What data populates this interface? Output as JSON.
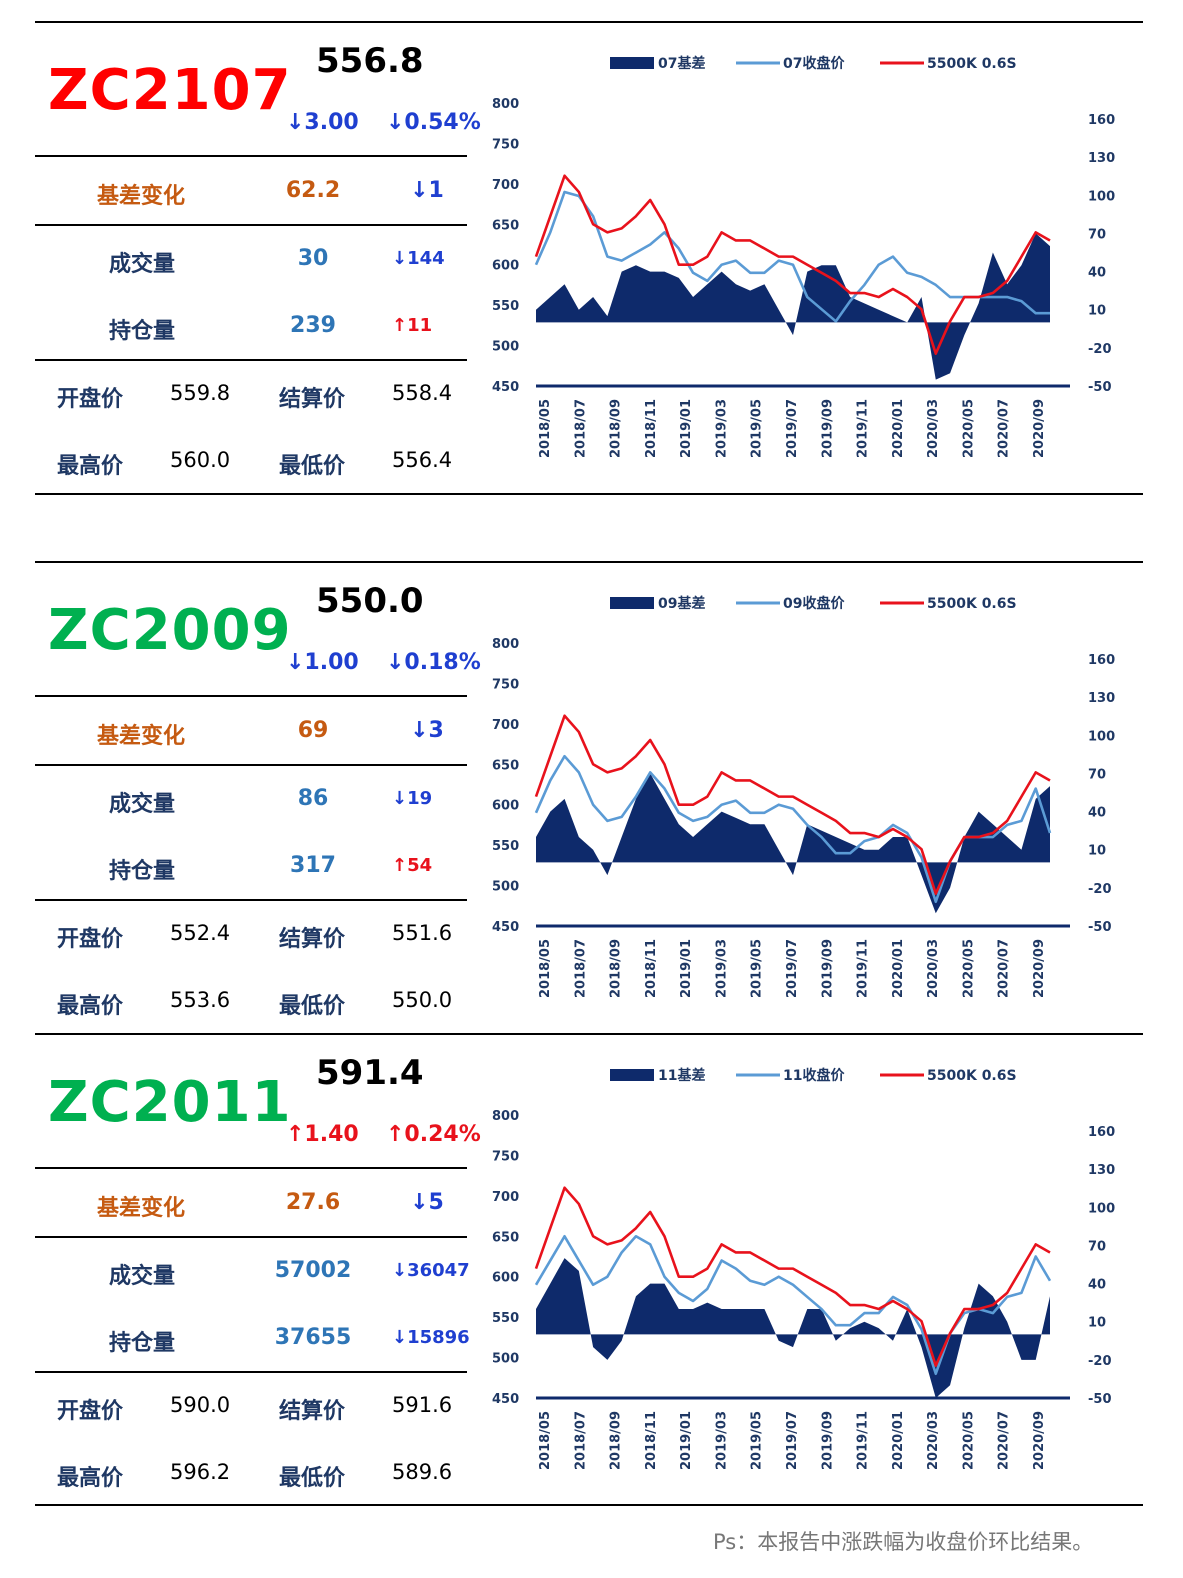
{
  "colors": {
    "red": "#FF0000",
    "green": "#00B050",
    "blue": "#1F3FD0",
    "orange": "#C55A11",
    "teal": "#2E75B6",
    "navy": "#0E2A6B",
    "lightblue": "#5B9BD5",
    "redline": "#E8121C"
  },
  "panels": [
    {
      "code": "ZC2107",
      "code_color": "#FF0000",
      "price": "556.8",
      "chg": "↓3.00",
      "pct": "↓0.54%",
      "chg_color": "#1F3FD0",
      "basis_label": "基差变化",
      "basis": "62.2",
      "basis_chg": "↓1",
      "basis_chg_color": "#1F3FD0",
      "vol_label": "成交量",
      "vol": "30",
      "vol_chg": "↓144",
      "vol_chg_color": "#1F3FD0",
      "oi_label": "持仓量",
      "oi": "239",
      "oi_chg": "↑11",
      "oi_chg_color": "#E8121C",
      "open_label": "开盘价",
      "open": "559.8",
      "settle_label": "结算价",
      "settle": "558.4",
      "high_label": "最高价",
      "high": "560.0",
      "low_label": "最低价",
      "low": "556.4",
      "legend": [
        "07基差",
        "07收盘价",
        "5500K 0.6S"
      ]
    },
    {
      "code": "ZC2009",
      "code_color": "#00B050",
      "price": "550.0",
      "chg": "↓1.00",
      "pct": "↓0.18%",
      "chg_color": "#1F3FD0",
      "basis_label": "基差变化",
      "basis": "69",
      "basis_chg": "↓3",
      "basis_chg_color": "#1F3FD0",
      "vol_label": "成交量",
      "vol": "86",
      "vol_chg": "↓19",
      "vol_chg_color": "#1F3FD0",
      "oi_label": "持仓量",
      "oi": "317",
      "oi_chg": "↑54",
      "oi_chg_color": "#E8121C",
      "open_label": "开盘价",
      "open": "552.4",
      "settle_label": "结算价",
      "settle": "551.6",
      "high_label": "最高价",
      "high": "553.6",
      "low_label": "最低价",
      "low": "550.0",
      "legend": [
        "09基差",
        "09收盘价",
        "5500K 0.6S"
      ]
    },
    {
      "code": "ZC2011",
      "code_color": "#00B050",
      "price": "591.4",
      "chg": "↑1.40",
      "pct": "↑0.24%",
      "chg_color": "#E8121C",
      "basis_label": "基差变化",
      "basis": "27.6",
      "basis_chg": "↓5",
      "basis_chg_color": "#1F3FD0",
      "vol_label": "成交量",
      "vol": "57002",
      "vol_chg": "↓36047",
      "vol_chg_color": "#1F3FD0",
      "oi_label": "持仓量",
      "oi": "37655",
      "oi_chg": "↓15896",
      "oi_chg_color": "#1F3FD0",
      "open_label": "开盘价",
      "open": "590.0",
      "settle_label": "结算价",
      "settle": "591.6",
      "high_label": "最高价",
      "high": "596.2",
      "low_label": "最低价",
      "low": "589.6",
      "legend": [
        "11基差",
        "11收盘价",
        "5500K 0.6S"
      ]
    }
  ],
  "chart_data": [
    {
      "type": "line",
      "x_ticks": [
        "2018/05",
        "2018/07",
        "2018/09",
        "2018/11",
        "2019/01",
        "2019/03",
        "2019/05",
        "2019/07",
        "2019/09",
        "2019/11",
        "2020/01",
        "2020/03",
        "2020/05",
        "2020/07",
        "2020/09"
      ],
      "y_left": [
        450,
        500,
        550,
        600,
        650,
        700,
        750,
        800
      ],
      "y_right": [
        -50,
        -20,
        10,
        40,
        70,
        100,
        130,
        160
      ],
      "ylim": [
        450,
        800
      ],
      "ylim_right": [
        -50,
        160
      ],
      "series": [
        {
          "name": "07收盘价",
          "axis": "left",
          "values": [
            600,
            640,
            690,
            685,
            660,
            610,
            605,
            615,
            625,
            640,
            620,
            590,
            580,
            600,
            605,
            590,
            590,
            605,
            600,
            560,
            545,
            530,
            555,
            575,
            600,
            610,
            590,
            585,
            575,
            560,
            560,
            560,
            560,
            560,
            555,
            540,
            540
          ]
        },
        {
          "name": "5500K 0.6S",
          "axis": "left",
          "values": [
            610,
            660,
            710,
            690,
            650,
            640,
            645,
            660,
            680,
            650,
            600,
            600,
            610,
            640,
            630,
            630,
            620,
            610,
            610,
            600,
            590,
            580,
            565,
            565,
            560,
            570,
            560,
            545,
            490,
            530,
            560,
            560,
            565,
            580,
            610,
            640,
            630
          ]
        },
        {
          "name": "07基差",
          "axis": "right",
          "values": [
            10,
            20,
            30,
            10,
            20,
            5,
            40,
            45,
            40,
            40,
            35,
            20,
            30,
            40,
            30,
            25,
            30,
            10,
            -10,
            40,
            45,
            45,
            20,
            15,
            10,
            5,
            0,
            20,
            -45,
            -40,
            -10,
            15,
            55,
            30,
            45,
            70,
            60
          ]
        }
      ]
    },
    {
      "type": "line",
      "x_ticks": [
        "2018/05",
        "2018/07",
        "2018/09",
        "2018/11",
        "2019/01",
        "2019/03",
        "2019/05",
        "2019/07",
        "2019/09",
        "2019/11",
        "2020/01",
        "2020/03",
        "2020/05",
        "2020/07",
        "2020/09"
      ],
      "y_left": [
        450,
        500,
        550,
        600,
        650,
        700,
        750,
        800
      ],
      "y_right": [
        -50,
        -20,
        10,
        40,
        70,
        100,
        130,
        160
      ],
      "ylim": [
        450,
        800
      ],
      "ylim_right": [
        -50,
        160
      ],
      "series": [
        {
          "name": "09收盘价",
          "axis": "left",
          "values": [
            590,
            630,
            660,
            640,
            600,
            580,
            585,
            610,
            640,
            620,
            590,
            580,
            585,
            600,
            605,
            590,
            590,
            600,
            595,
            575,
            560,
            540,
            540,
            555,
            560,
            575,
            565,
            535,
            480,
            530,
            560,
            560,
            560,
            575,
            580,
            620,
            565
          ]
        },
        {
          "name": "5500K 0.6S",
          "axis": "left",
          "values": [
            610,
            660,
            710,
            690,
            650,
            640,
            645,
            660,
            680,
            650,
            600,
            600,
            610,
            640,
            630,
            630,
            620,
            610,
            610,
            600,
            590,
            580,
            565,
            565,
            560,
            570,
            560,
            545,
            490,
            530,
            560,
            560,
            565,
            580,
            610,
            640,
            630
          ]
        },
        {
          "name": "09基差",
          "axis": "right",
          "values": [
            20,
            40,
            50,
            20,
            10,
            -10,
            20,
            50,
            70,
            50,
            30,
            20,
            30,
            40,
            35,
            30,
            30,
            10,
            -10,
            30,
            25,
            20,
            15,
            10,
            10,
            20,
            20,
            -10,
            -40,
            -20,
            20,
            40,
            30,
            20,
            10,
            50,
            60
          ]
        }
      ]
    },
    {
      "type": "line",
      "x_ticks": [
        "2018/05",
        "2018/07",
        "2018/09",
        "2018/11",
        "2019/01",
        "2019/03",
        "2019/05",
        "2019/07",
        "2019/09",
        "2019/11",
        "2020/01",
        "2020/03",
        "2020/05",
        "2020/07",
        "2020/09"
      ],
      "y_left": [
        450,
        500,
        550,
        600,
        650,
        700,
        750,
        800
      ],
      "y_right": [
        -50,
        -20,
        10,
        40,
        70,
        100,
        130,
        160
      ],
      "ylim": [
        450,
        800
      ],
      "ylim_right": [
        -50,
        160
      ],
      "series": [
        {
          "name": "11收盘价",
          "axis": "left",
          "values": [
            590,
            620,
            650,
            620,
            590,
            600,
            630,
            650,
            640,
            600,
            580,
            570,
            585,
            620,
            610,
            595,
            590,
            600,
            590,
            575,
            560,
            540,
            540,
            555,
            555,
            575,
            565,
            535,
            480,
            530,
            555,
            560,
            555,
            575,
            580,
            625,
            595
          ]
        },
        {
          "name": "5500K 0.6S",
          "axis": "left",
          "values": [
            610,
            660,
            710,
            690,
            650,
            640,
            645,
            660,
            680,
            650,
            600,
            600,
            610,
            640,
            630,
            630,
            620,
            610,
            610,
            600,
            590,
            580,
            565,
            565,
            560,
            570,
            560,
            545,
            490,
            530,
            560,
            560,
            565,
            580,
            610,
            640,
            630
          ]
        },
        {
          "name": "11基差",
          "axis": "right",
          "values": [
            20,
            40,
            60,
            50,
            -10,
            -20,
            -5,
            30,
            40,
            40,
            20,
            20,
            25,
            20,
            20,
            20,
            20,
            -5,
            -10,
            20,
            20,
            -5,
            5,
            10,
            5,
            -5,
            20,
            -10,
            -50,
            -40,
            5,
            40,
            30,
            10,
            -20,
            -20,
            30
          ]
        }
      ]
    }
  ]
}
